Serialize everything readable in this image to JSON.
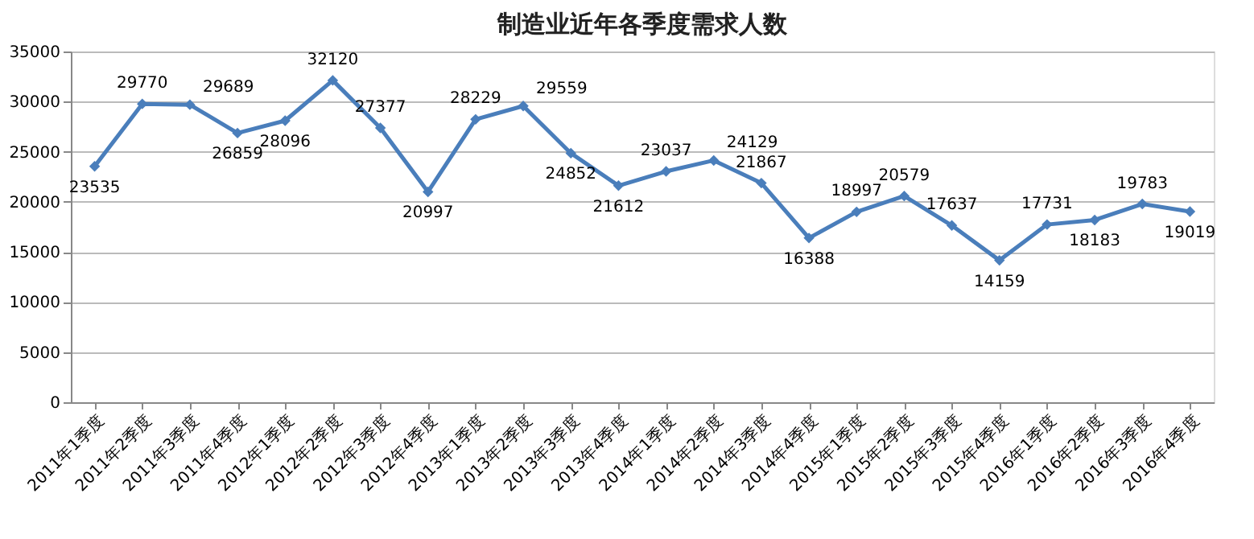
{
  "chart_data": {
    "type": "line",
    "title": "制造业近年各季度需求人数",
    "categories": [
      "2011年1季度",
      "2011年2季度",
      "2011年3季度",
      "2011年4季度",
      "2012年1季度",
      "2012年2季度",
      "2012年3季度",
      "2012年4季度",
      "2013年1季度",
      "2013年2季度",
      "2013年3季度",
      "2013年4季度",
      "2014年1季度",
      "2014年2季度",
      "2014年3季度",
      "2014年4季度",
      "2015年1季度",
      "2015年2季度",
      "2015年3季度",
      "2015年4季度",
      "2016年1季度",
      "2016年2季度",
      "2016年3季度",
      "2016年4季度"
    ],
    "series": [
      {
        "color": "#4a7ebb",
        "values": [
          23535,
          29770,
          29689,
          26859,
          28096,
          32120,
          27377,
          20997,
          28229,
          29559,
          24852,
          21612,
          23037,
          24129,
          21867,
          16388,
          18997,
          20579,
          17637,
          14159,
          17731,
          18183,
          19783,
          19019
        ]
      }
    ],
    "ylim": [
      0,
      35000
    ],
    "yticks": [
      0,
      5000,
      10000,
      15000,
      20000,
      25000,
      30000,
      35000
    ],
    "grid": "y",
    "marker": "diamond",
    "line_style": "solid",
    "data_labels": true
  }
}
